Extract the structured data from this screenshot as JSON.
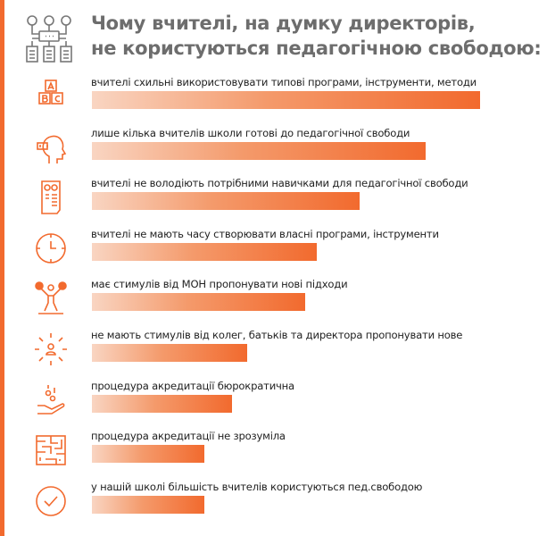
{
  "title_lines": [
    "Чому вчителі, на думку директорів,",
    "не користуються педагогічною свободою:"
  ],
  "colors": {
    "accent": "#f26a2e",
    "title": "#6d6d6d"
  },
  "chart_data": {
    "type": "bar",
    "orientation": "horizontal",
    "title": "Чому вчителі, на думку директорів, не користуються педагогічною свободою:",
    "value_unit": "relative length, % of longest bar (no axis shown)",
    "categories": [
      "вчителі схильні використовувати типові програми, інструменти, методи",
      "лише кілька вчителів школи готові до педагогічної свободи",
      "вчителі не володіють потрібними навичками для педагогічної свободи",
      "вчителі не мають часу створювати власні програми, інструменти",
      "має стимулів від МОН пропонувати нові підходи",
      "не мають стимулів від колег, батьків та директора пропонувати нове",
      "процедура акредитації бюрократична",
      "процедура акредитації не зрозуміла",
      "у нашій школі більшість вчителів користуються пед.свободою"
    ],
    "values": [
      100,
      86,
      69,
      58,
      55,
      40,
      36,
      29,
      29
    ],
    "icons": [
      "abc-blocks-icon",
      "head-low-battery-icon",
      "document-checklist-icon",
      "clock-icon",
      "cheerleader-icon",
      "person-arrows-icon",
      "hand-coins-icon",
      "maze-icon",
      "check-circle-icon"
    ],
    "grid": false
  }
}
